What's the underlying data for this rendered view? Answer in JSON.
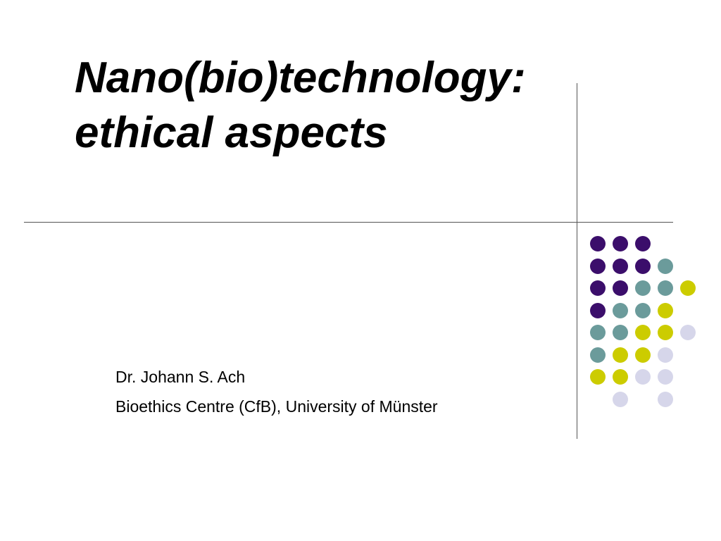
{
  "slide": {
    "title_lines": [
      "Nano(bio)technology:",
      "ethical aspects"
    ],
    "subtitle_lines": [
      "Dr. Johann S. Ach",
      "Bioethics Centre (CfB), University of Münster"
    ]
  },
  "colors": {
    "purple": "#3b0e6b",
    "teal": "#6b9b9b",
    "olive": "#cccc00",
    "lavender": "#d6d6ea",
    "rule_lines": "#555555"
  },
  "dot_pattern": [
    [
      "purple",
      "purple",
      "purple",
      "",
      ""
    ],
    [
      "purple",
      "purple",
      "purple",
      "teal",
      ""
    ],
    [
      "purple",
      "purple",
      "teal",
      "teal",
      "olive"
    ],
    [
      "purple",
      "teal",
      "teal",
      "olive",
      ""
    ],
    [
      "teal",
      "teal",
      "olive",
      "olive",
      "lavender"
    ],
    [
      "teal",
      "olive",
      "olive",
      "lavender",
      ""
    ],
    [
      "olive",
      "olive",
      "lavender",
      "lavender",
      ""
    ],
    [
      "",
      "lavender",
      "",
      "lavender",
      ""
    ]
  ]
}
